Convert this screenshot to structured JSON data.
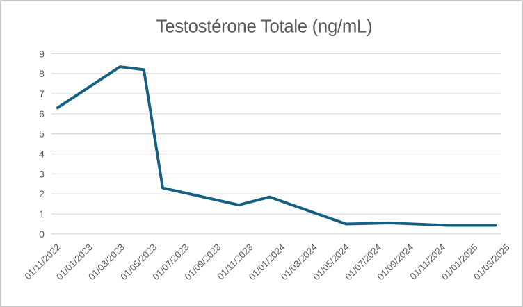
{
  "colors": {
    "line": "#156082",
    "grid": "#D9D9D9",
    "text": "#595959",
    "frame_border": "#C8C8C8",
    "background": "#FFFFFF"
  },
  "chart_data": {
    "type": "line",
    "title": "Testostérone Totale (ng/mL)",
    "xlabel": "",
    "ylabel": "",
    "grid": true,
    "legend": false,
    "x_axis": {
      "type": "date",
      "tick_interval": "2 months",
      "tick_labels": [
        "01/11/2022",
        "01/01/2023",
        "01/03/2023",
        "01/05/2023",
        "01/07/2023",
        "01/09/2023",
        "01/11/2023",
        "01/01/2024",
        "01/03/2024",
        "01/05/2024",
        "01/07/2024",
        "01/09/2024",
        "01/11/2024",
        "01/01/2025",
        "01/03/2025"
      ]
    },
    "y_axis": {
      "min": 0,
      "max": 9,
      "step": 1,
      "tick_labels": [
        "0",
        "1",
        "2",
        "3",
        "4",
        "5",
        "6",
        "7",
        "8",
        "9"
      ]
    },
    "series": [
      {
        "name": "Testostérone Totale (ng/mL)",
        "points": [
          {
            "x_frac": 0.014,
            "approx_date": "2022-11-15",
            "value": 6.3
          },
          {
            "x_frac": 0.153,
            "approx_date": "2023-03-10",
            "value": 8.35
          },
          {
            "x_frac": 0.206,
            "approx_date": "2023-04-25",
            "value": 8.2
          },
          {
            "x_frac": 0.248,
            "approx_date": "2023-06-01",
            "value": 2.3
          },
          {
            "x_frac": 0.417,
            "approx_date": "2023-10-22",
            "value": 1.45
          },
          {
            "x_frac": 0.486,
            "approx_date": "2023-12-20",
            "value": 1.85
          },
          {
            "x_frac": 0.656,
            "approx_date": "2024-05-15",
            "value": 0.5
          },
          {
            "x_frac": 0.753,
            "approx_date": "2024-08-01",
            "value": 0.55
          },
          {
            "x_frac": 0.883,
            "approx_date": "2024-11-22",
            "value": 0.43
          },
          {
            "x_frac": 0.988,
            "approx_date": "2025-02-20",
            "value": 0.43
          }
        ]
      }
    ]
  }
}
